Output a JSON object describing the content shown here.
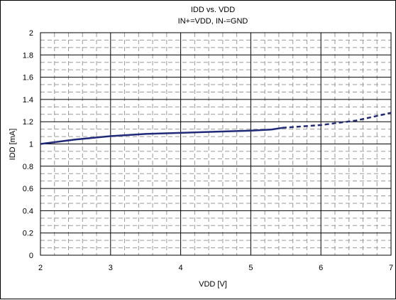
{
  "chart_data": {
    "type": "line",
    "title": "IDD vs. VDD",
    "subtitle": "IN+=VDD, IN-=GND",
    "xlabel": "VDD [V]",
    "ylabel": "IDD [mA]",
    "xlim": [
      2,
      7
    ],
    "ylim": [
      0,
      2
    ],
    "xticks": [
      "2",
      "3",
      "4",
      "5",
      "6",
      "7"
    ],
    "yticks": [
      "0",
      "0.2",
      "0.4",
      "0.6",
      "0.8",
      "1",
      "1.2",
      "1.4",
      "1.6",
      "1.8",
      "2"
    ],
    "grid": true,
    "series": [
      {
        "style": "solid",
        "color": "#1f2a78",
        "x": [
          2.0,
          2.5,
          3.0,
          3.5,
          4.0,
          4.5,
          5.0,
          5.3,
          5.45
        ],
        "y": [
          1.0,
          1.04,
          1.07,
          1.09,
          1.1,
          1.11,
          1.12,
          1.13,
          1.145
        ]
      },
      {
        "style": "dashed",
        "color": "#1f2a78",
        "x": [
          5.45,
          6.0,
          6.5,
          7.0
        ],
        "y": [
          1.145,
          1.17,
          1.21,
          1.28
        ]
      }
    ]
  }
}
